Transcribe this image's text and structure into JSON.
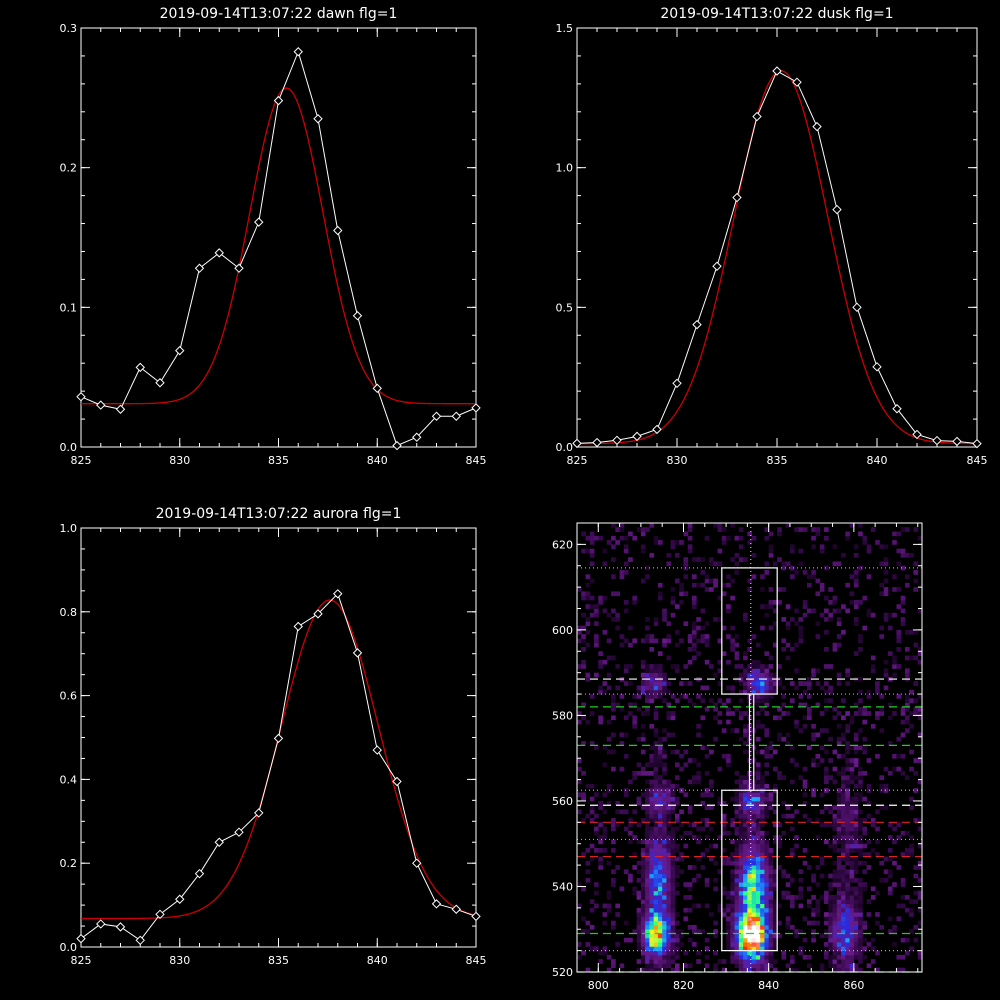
{
  "chart_data": [
    {
      "type": "line",
      "title": "2019-09-14T13:07:22 dawn flg=1",
      "xlim": [
        825,
        845
      ],
      "ylim": [
        0,
        0.3
      ],
      "xticks": [
        825,
        830,
        835,
        840,
        845
      ],
      "yticks": [
        0.0,
        0.1,
        0.2,
        0.3
      ],
      "xtick_labels": [
        "825",
        "830",
        "835",
        "840",
        "845"
      ],
      "ytick_labels": [
        "0.0",
        "0.1",
        "0.2",
        "0.3"
      ],
      "data_color": "#ffffff",
      "fit_color": "#cc0000",
      "x": [
        825,
        826,
        827,
        828,
        829,
        830,
        831,
        832,
        833,
        834,
        835,
        836,
        837,
        838,
        839,
        840,
        841,
        842,
        843,
        844,
        845
      ],
      "data": [
        0.036,
        0.03,
        0.027,
        0.057,
        0.046,
        0.069,
        0.128,
        0.139,
        0.128,
        0.161,
        0.248,
        0.283,
        0.235,
        0.155,
        0.094,
        0.042,
        0.001,
        0.007,
        0.022,
        0.022,
        0.028
      ],
      "fit": {
        "baseline": 0.031,
        "amplitude": 0.226,
        "center": 835.4,
        "sigma": 1.85
      }
    },
    {
      "type": "line",
      "title": "2019-09-14T13:07:22 dusk flg=1",
      "xlim": [
        825,
        845
      ],
      "ylim": [
        0,
        1.5
      ],
      "xticks": [
        825,
        830,
        835,
        840,
        845
      ],
      "yticks": [
        0.0,
        0.5,
        1.0,
        1.5
      ],
      "xtick_labels": [
        "825",
        "830",
        "835",
        "840",
        "845"
      ],
      "ytick_labels": [
        "0.0",
        "0.5",
        "1.0",
        "1.5"
      ],
      "data_color": "#ffffff",
      "fit_color": "#cc0000",
      "x": [
        825,
        826,
        827,
        828,
        829,
        830,
        831,
        832,
        833,
        834,
        835,
        836,
        837,
        838,
        839,
        840,
        841,
        842,
        843,
        844,
        845
      ],
      "data": [
        0.013,
        0.016,
        0.024,
        0.038,
        0.063,
        0.228,
        0.438,
        0.647,
        0.893,
        1.183,
        1.346,
        1.306,
        1.147,
        0.85,
        0.5,
        0.287,
        0.137,
        0.045,
        0.023,
        0.02,
        0.012
      ],
      "fit": {
        "baseline": 0.012,
        "amplitude": 1.335,
        "center": 835.2,
        "sigma": 2.35
      }
    },
    {
      "type": "line",
      "title": "2019-09-14T13:07:22 aurora flg=1",
      "xlim": [
        825,
        845
      ],
      "ylim": [
        0,
        1.0
      ],
      "xticks": [
        825,
        830,
        835,
        840,
        845
      ],
      "yticks": [
        0.0,
        0.2,
        0.4,
        0.6,
        0.8,
        1.0
      ],
      "xtick_labels": [
        "825",
        "830",
        "835",
        "840",
        "845"
      ],
      "ytick_labels": [
        "0.0",
        "0.2",
        "0.4",
        "0.6",
        "0.8",
        "1.0"
      ],
      "data_color": "#ffffff",
      "fit_color": "#cc0000",
      "x": [
        825,
        826,
        827,
        828,
        829,
        830,
        831,
        832,
        833,
        834,
        835,
        836,
        837,
        838,
        839,
        840,
        841,
        842,
        843,
        844,
        845
      ],
      "data": [
        0.02,
        0.055,
        0.048,
        0.016,
        0.078,
        0.114,
        0.175,
        0.25,
        0.274,
        0.32,
        0.498,
        0.765,
        0.795,
        0.843,
        0.702,
        0.47,
        0.395,
        0.2,
        0.103,
        0.09,
        0.073
      ],
      "fit": {
        "baseline": 0.068,
        "amplitude": 0.76,
        "center": 837.6,
        "sigma": 2.45
      }
    },
    {
      "type": "heatmap",
      "xlim": [
        795,
        876
      ],
      "ylim": [
        520,
        625
      ],
      "xticks": [
        800,
        820,
        840,
        860
      ],
      "yticks": [
        520,
        540,
        560,
        580,
        600,
        620
      ],
      "xtick_labels": [
        "800",
        "820",
        "840",
        "860"
      ],
      "ytick_labels": [
        "520",
        "540",
        "560",
        "580",
        "600",
        "620"
      ],
      "colormap": [
        "#000000",
        "#3a0a52",
        "#6a1a8a",
        "#2a2ae0",
        "#1aa0ff",
        "#22ff88",
        "#eeff22",
        "#ff2200",
        "#ffffff"
      ],
      "emission_columns": [
        {
          "center": 814.5,
          "width": 2.6
        },
        {
          "center": 836.0,
          "width": 2.4
        },
        {
          "center": 858.5,
          "width": 2.8
        }
      ],
      "blobs": [
        {
          "x": 813.5,
          "y": 529.0,
          "sx": 2.0,
          "sy": 3.0,
          "amp": 0.75
        },
        {
          "x": 836.0,
          "y": 528.5,
          "sx": 2.4,
          "sy": 3.5,
          "amp": 1.0
        },
        {
          "x": 836.5,
          "y": 540.0,
          "sx": 2.4,
          "sy": 6.0,
          "amp": 0.55
        },
        {
          "x": 814.0,
          "y": 542.0,
          "sx": 2.0,
          "sy": 6.0,
          "amp": 0.35
        },
        {
          "x": 836.0,
          "y": 560.0,
          "sx": 2.0,
          "sy": 2.0,
          "amp": 0.35
        },
        {
          "x": 814.5,
          "y": 560.0,
          "sx": 2.0,
          "sy": 2.0,
          "amp": 0.25
        },
        {
          "x": 838.0,
          "y": 587.5,
          "sx": 2.0,
          "sy": 2.0,
          "amp": 0.4
        },
        {
          "x": 813.0,
          "y": 587.5,
          "sx": 2.0,
          "sy": 2.0,
          "amp": 0.25
        },
        {
          "x": 857.5,
          "y": 530.0,
          "sx": 2.2,
          "sy": 3.5,
          "amp": 0.3
        },
        {
          "x": 858.0,
          "y": 556.0,
          "sx": 2.0,
          "sy": 3.0,
          "amp": 0.1
        }
      ],
      "boxes": [
        {
          "x": [
            829,
            842
          ],
          "y": [
            525,
            562.5
          ],
          "color": "#ffffff"
        },
        {
          "x": [
            829,
            842
          ],
          "y": [
            585,
            614.5
          ],
          "color": "#ffffff"
        },
        {
          "x": [
            835.5,
            836.5
          ],
          "y": [
            562.5,
            585
          ],
          "color": "#ffffff"
        }
      ],
      "hlines": [
        {
          "y": 614.5,
          "style": "dotted",
          "color": "#ff66ff"
        },
        {
          "y": 588.5,
          "style": "dashed",
          "color": "#ffffff"
        },
        {
          "y": 585.0,
          "style": "dotted",
          "color": "#ff66ff"
        },
        {
          "y": 582.0,
          "style": "dashed",
          "color": "#22cc22"
        },
        {
          "y": 573.0,
          "style": "dashed",
          "color": "#22cc22"
        },
        {
          "y": 562.5,
          "style": "dotted",
          "color": "#ff66ff"
        },
        {
          "y": 559.0,
          "style": "dashed",
          "color": "#ffffff"
        },
        {
          "y": 555.0,
          "style": "dashed",
          "color": "#dd2222"
        },
        {
          "y": 551.0,
          "style": "dotted",
          "color": "#ff66ff"
        },
        {
          "y": 547.0,
          "style": "dashed",
          "color": "#dd2222"
        },
        {
          "y": 529.0,
          "style": "dashed",
          "color": "#22cc22"
        },
        {
          "y": 525.0,
          "style": "dotted",
          "color": "#ff66ff"
        },
        {
          "y": 520.0,
          "style": "dashed",
          "color": "#22cc22"
        }
      ],
      "vlines": [
        {
          "x": 835.8,
          "style": "dotted",
          "color": "#ccffcc"
        }
      ]
    }
  ]
}
